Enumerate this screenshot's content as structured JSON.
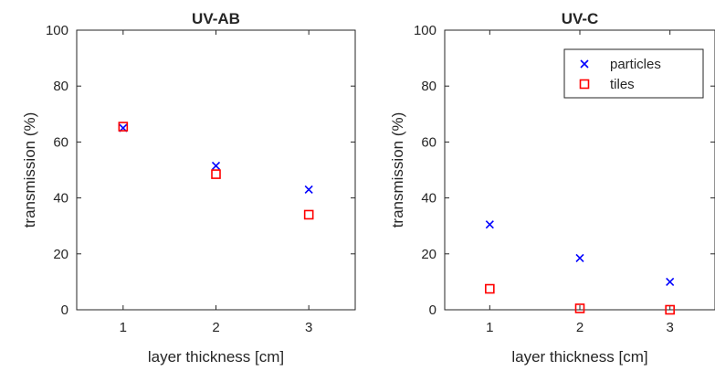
{
  "chart_data": [
    {
      "type": "scatter",
      "title": "UV-AB",
      "xlabel": "layer thickness [cm]",
      "ylabel": "transmission (%)",
      "xlim": [
        0.5,
        3.5
      ],
      "ylim": [
        0,
        100
      ],
      "xticks": [
        1,
        2,
        3
      ],
      "yticks": [
        0,
        20,
        40,
        60,
        80,
        100
      ],
      "grid": false,
      "legend": null,
      "series": [
        {
          "marker": "x",
          "color": "#0000ff",
          "x": [
            1,
            2,
            3
          ],
          "y": [
            65,
            51.5,
            43
          ]
        },
        {
          "marker": "square",
          "color": "#ff0000",
          "x": [
            1,
            2,
            3
          ],
          "y": [
            65.5,
            48.5,
            34
          ]
        }
      ]
    },
    {
      "type": "scatter",
      "title": "UV-C",
      "xlabel": "layer thickness [cm]",
      "ylabel": "transmission (%)",
      "xlim": [
        0.5,
        3.5
      ],
      "ylim": [
        0,
        100
      ],
      "xticks": [
        1,
        2,
        3
      ],
      "yticks": [
        0,
        20,
        40,
        60,
        80,
        100
      ],
      "grid": false,
      "legend": "top-right",
      "series": [
        {
          "name": "particles",
          "marker": "x",
          "color": "#0000ff",
          "x": [
            1,
            2,
            3
          ],
          "y": [
            30.5,
            18.5,
            10
          ]
        },
        {
          "name": "tiles",
          "marker": "square",
          "color": "#ff0000",
          "x": [
            1,
            2,
            3
          ],
          "y": [
            7.5,
            0.5,
            0
          ]
        }
      ]
    }
  ]
}
